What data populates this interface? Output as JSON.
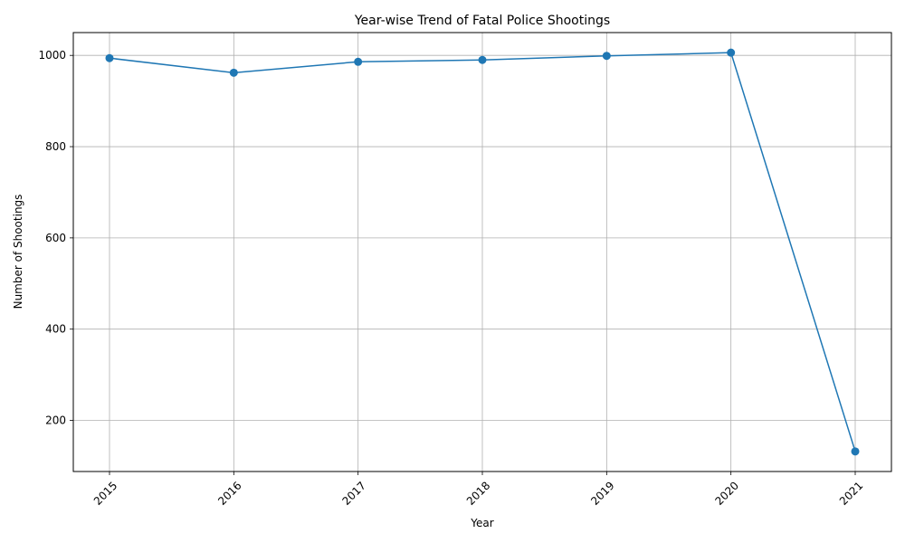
{
  "chart_data": {
    "type": "line",
    "title": "Year-wise Trend of Fatal Police Shootings",
    "xlabel": "Year",
    "ylabel": "Number of Shootings",
    "categories": [
      "2015",
      "2016",
      "2017",
      "2018",
      "2019",
      "2020",
      "2021"
    ],
    "series": [
      {
        "values": [
          994,
          962,
          986,
          990,
          999,
          1006,
          132
        ],
        "color": "#1f77b4"
      }
    ],
    "ylim": [
      88,
      1050
    ],
    "yticks": [
      200,
      400,
      600,
      800,
      1000
    ],
    "grid": true,
    "x_tick_rotation": 45,
    "marker": "circle"
  }
}
